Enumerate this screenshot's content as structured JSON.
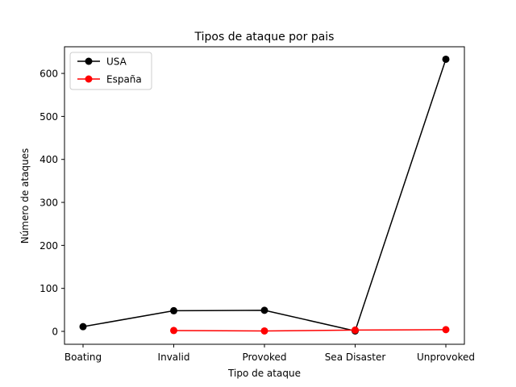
{
  "chart_data": {
    "type": "line",
    "title": "Tipos de ataque por pais",
    "xlabel": "Tipo de ataque",
    "ylabel": "Número de ataques",
    "categories": [
      "Boating",
      "Invalid",
      "Provoked",
      "Sea Disaster",
      "Unprovoked"
    ],
    "ylim": [
      -30,
      662
    ],
    "yticks": [
      0,
      100,
      200,
      300,
      400,
      500,
      600
    ],
    "grid": false,
    "legend_position": "top-left",
    "series": [
      {
        "name": "USA",
        "color": "#000000",
        "marker": "circle",
        "values": [
          11,
          48,
          49,
          1,
          633
        ]
      },
      {
        "name": "España",
        "color": "#ff0000",
        "marker": "circle",
        "values": [
          null,
          2,
          1,
          3,
          4
        ]
      }
    ]
  }
}
